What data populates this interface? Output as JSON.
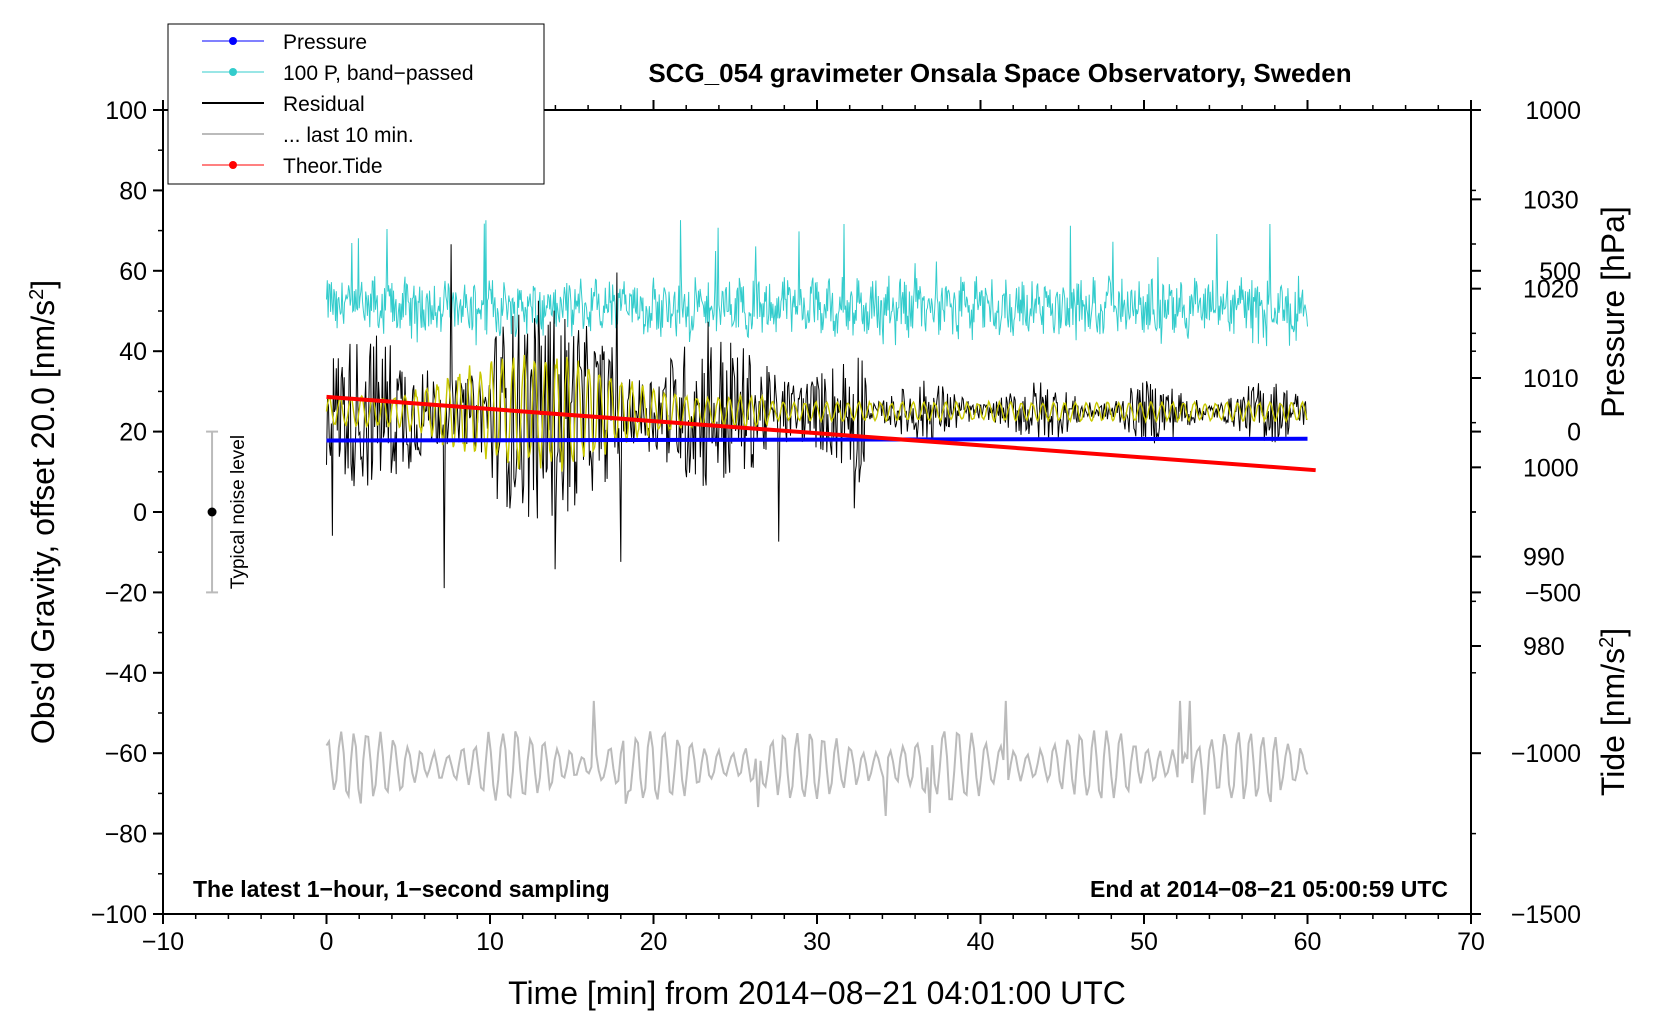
{
  "chart_data": {
    "type": "line",
    "title": "SCG_054 gravimeter Onsala Space Observatory, Sweden",
    "xlabel": "Time [min] from 2014−08−21 04:01:00 UTC",
    "ylabel_left": "Obs'd Gravity, offset 20.0 [nm/s²]",
    "ylabel_right_pressure": "Pressure [hPa]",
    "ylabel_right_tide": "Tide [nm/s²]",
    "xlim": [
      -10,
      70
    ],
    "ylim_left": [
      -100,
      100
    ],
    "ylim_pressure": [
      950,
      1040
    ],
    "ylim_tide": [
      -1500,
      1000
    ],
    "x_ticks": [
      "−10",
      "0",
      "10",
      "20",
      "30",
      "40",
      "50",
      "60",
      "70"
    ],
    "y_ticks_left": [
      "−100",
      "−80",
      "−60",
      "−40",
      "−20",
      "0",
      "20",
      "40",
      "60",
      "80",
      "100"
    ],
    "pressure_ticks": [
      "980",
      "990",
      "1000",
      "1010",
      "1020",
      "1030"
    ],
    "tide_ticks": [
      "−1500",
      "−1000",
      "−500",
      "0",
      "500",
      "1000"
    ],
    "legend": [
      {
        "label": "Pressure",
        "color": "#0000ff",
        "marker": true
      },
      {
        "label": "100 P, band−passed",
        "color": "#33cccc",
        "marker": true
      },
      {
        "label": "Residual",
        "color": "#000000",
        "marker": false
      },
      {
        "label": "... last 10 min.",
        "color": "#bbbbbb",
        "marker": false
      },
      {
        "label": "Theor.Tide",
        "color": "#ff0000",
        "marker": true
      }
    ],
    "note_left": "The latest 1−hour, 1−second sampling",
    "note_right": "End at 2014−08−21 05:00:59 UTC",
    "noise_label": "Typical noise level",
    "noise_bar": {
      "x": -7,
      "center": 0,
      "low": -20,
      "high": 20
    },
    "series": {
      "pressure": {
        "x": [
          0,
          60
        ],
        "values_hpa": [
          1003.0,
          1003.2
        ],
        "color": "#0000ff"
      },
      "tide": {
        "x": [
          0,
          60.5
        ],
        "values": [
          108,
          -120
        ],
        "color": "#ff0000"
      },
      "pressure_bandpassed": {
        "x_range": [
          0,
          60
        ],
        "center": 51,
        "typical_range": [
          42,
          62
        ],
        "max": 73,
        "color": "#33cccc"
      },
      "residual": {
        "x_range": [
          0,
          60
        ],
        "center": 25,
        "min": -19,
        "max": 72,
        "color": "#000000"
      },
      "residual_filtered": {
        "x_range": [
          0,
          60
        ],
        "center": 25,
        "max_envelope": 40,
        "color": "#c8c800"
      },
      "last_10_min": {
        "x_range": [
          0,
          60
        ],
        "center": -63,
        "min": -76,
        "max": -47,
        "color": "#bbbbbb"
      }
    }
  }
}
